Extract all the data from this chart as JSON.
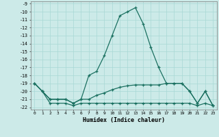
{
  "x": [
    0,
    1,
    2,
    3,
    4,
    5,
    6,
    7,
    8,
    9,
    10,
    11,
    12,
    13,
    14,
    15,
    16,
    17,
    18,
    19,
    20,
    21,
    22,
    23
  ],
  "line_main": [
    -19,
    -20,
    -21,
    -21,
    -21,
    -21.5,
    -21,
    -18,
    -17.5,
    -15.5,
    -13,
    -10.5,
    -10,
    -9.5,
    -11.5,
    -14.5,
    -17,
    -19,
    -19,
    -19,
    -20,
    -21.5,
    -20,
    -21.8
  ],
  "line_mid": [
    -19,
    -20,
    -21,
    -21,
    -21,
    -21.5,
    -21,
    -21,
    -20.5,
    -20.2,
    -19.8,
    -19.5,
    -19.3,
    -19.2,
    -19.2,
    -19.2,
    -19.2,
    -19,
    -19,
    -19,
    -20,
    -21.5,
    -20,
    -21.8
  ],
  "line_low": [
    -19,
    -20,
    -21.5,
    -21.5,
    -21.5,
    -21.8,
    -21.5,
    -21.5,
    -21.5,
    -21.5,
    -21.5,
    -21.5,
    -21.5,
    -21.5,
    -21.5,
    -21.5,
    -21.5,
    -21.5,
    -21.5,
    -21.5,
    -21.5,
    -21.8,
    -21.5,
    -21.8
  ],
  "ylim": [
    -22.3,
    -8.7
  ],
  "xlim": [
    -0.5,
    23.5
  ],
  "yticks": [
    -9,
    -10,
    -11,
    -12,
    -13,
    -14,
    -15,
    -16,
    -17,
    -18,
    -19,
    -20,
    -21,
    -22
  ],
  "xticks": [
    0,
    1,
    2,
    3,
    4,
    5,
    6,
    7,
    8,
    9,
    10,
    11,
    12,
    13,
    14,
    15,
    16,
    17,
    18,
    19,
    20,
    21,
    22,
    23
  ],
  "xlabel": "Humidex (Indice chaleur)",
  "line_color": "#1a7060",
  "bg_color": "#cceae8",
  "grid_color": "#a8d8d5",
  "marker": "+",
  "lw": 0.9,
  "ms": 3.5,
  "mew": 0.9
}
